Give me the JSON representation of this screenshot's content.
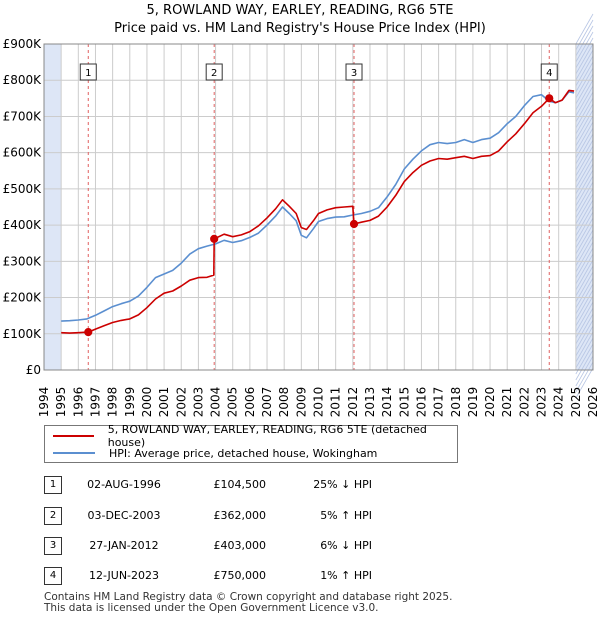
{
  "header": {
    "title_line1": "5, ROWLAND WAY, EARLEY, READING, RG6 5TE",
    "title_line2": "Price paid vs. HM Land Registry's House Price Index (HPI)"
  },
  "colors": {
    "price_line": "#cc0000",
    "hpi_line": "#5b8fd0",
    "shade": "#dde6f6",
    "marker_line": "#e06060",
    "grid": "#cccccc"
  },
  "chart_data": {
    "type": "line",
    "title": "5, ROWLAND WAY, EARLEY, READING, RG6 5TE — Price paid vs. HM Land Registry's House Price Index (HPI)",
    "xlabel": "",
    "ylabel": "",
    "xlim": [
      1994,
      2026
    ],
    "ylim": [
      0,
      900000
    ],
    "x_ticks": [
      1994,
      1995,
      1996,
      1997,
      1998,
      1999,
      2000,
      2001,
      2002,
      2003,
      2004,
      2005,
      2006,
      2007,
      2008,
      2009,
      2010,
      2011,
      2012,
      2013,
      2014,
      2015,
      2016,
      2017,
      2018,
      2019,
      2020,
      2021,
      2022,
      2023,
      2024,
      2025,
      2026
    ],
    "y_ticks": [
      {
        "value": 0,
        "label": "£0"
      },
      {
        "value": 100000,
        "label": "£100K"
      },
      {
        "value": 200000,
        "label": "£200K"
      },
      {
        "value": 300000,
        "label": "£300K"
      },
      {
        "value": 400000,
        "label": "£400K"
      },
      {
        "value": 500000,
        "label": "£500K"
      },
      {
        "value": 600000,
        "label": "£600K"
      },
      {
        "value": 700000,
        "label": "£700K"
      },
      {
        "value": 800000,
        "label": "£800K"
      },
      {
        "value": 900000,
        "label": "£900K"
      }
    ],
    "shaded_ranges": [
      [
        1994,
        1995
      ],
      [
        2025,
        2026
      ]
    ],
    "series": [
      {
        "name": "5, ROWLAND WAY, EARLEY, READING, RG6 5TE (detached house)",
        "color": "#cc0000",
        "points": [
          [
            1995.0,
            103000
          ],
          [
            1995.5,
            102000
          ],
          [
            1996.0,
            103000
          ],
          [
            1996.58,
            104500
          ],
          [
            1997.0,
            113000
          ],
          [
            1997.5,
            122000
          ],
          [
            1998.0,
            131000
          ],
          [
            1998.5,
            137000
          ],
          [
            1999.0,
            141000
          ],
          [
            1999.5,
            152000
          ],
          [
            2000.0,
            172000
          ],
          [
            2000.5,
            196000
          ],
          [
            2001.0,
            212000
          ],
          [
            2001.5,
            218000
          ],
          [
            2002.0,
            232000
          ],
          [
            2002.5,
            248000
          ],
          [
            2003.0,
            255000
          ],
          [
            2003.5,
            256000
          ],
          [
            2003.9,
            262000
          ],
          [
            2003.92,
            362000
          ],
          [
            2004.5,
            375000
          ],
          [
            2005.0,
            368000
          ],
          [
            2005.5,
            373000
          ],
          [
            2006.0,
            382000
          ],
          [
            2006.5,
            398000
          ],
          [
            2007.0,
            420000
          ],
          [
            2007.5,
            445000
          ],
          [
            2007.9,
            470000
          ],
          [
            2008.3,
            452000
          ],
          [
            2008.7,
            432000
          ],
          [
            2009.0,
            393000
          ],
          [
            2009.3,
            388000
          ],
          [
            2009.7,
            412000
          ],
          [
            2010.0,
            432000
          ],
          [
            2010.5,
            442000
          ],
          [
            2011.0,
            448000
          ],
          [
            2011.5,
            450000
          ],
          [
            2012.0,
            452000
          ],
          [
            2012.07,
            403000
          ],
          [
            2012.5,
            408000
          ],
          [
            2013.0,
            413000
          ],
          [
            2013.5,
            425000
          ],
          [
            2014.0,
            450000
          ],
          [
            2014.5,
            482000
          ],
          [
            2015.0,
            520000
          ],
          [
            2015.5,
            545000
          ],
          [
            2016.0,
            565000
          ],
          [
            2016.5,
            577000
          ],
          [
            2017.0,
            584000
          ],
          [
            2017.5,
            582000
          ],
          [
            2018.0,
            586000
          ],
          [
            2018.5,
            590000
          ],
          [
            2019.0,
            584000
          ],
          [
            2019.5,
            590000
          ],
          [
            2020.0,
            592000
          ],
          [
            2020.5,
            605000
          ],
          [
            2021.0,
            630000
          ],
          [
            2021.5,
            652000
          ],
          [
            2022.0,
            680000
          ],
          [
            2022.5,
            710000
          ],
          [
            2023.0,
            728000
          ],
          [
            2023.45,
            750000
          ],
          [
            2023.8,
            738000
          ],
          [
            2024.2,
            745000
          ],
          [
            2024.6,
            772000
          ],
          [
            2024.9,
            770000
          ]
        ]
      },
      {
        "name": "HPI: Average price, detached house, Wokingham",
        "color": "#5b8fd0",
        "points": [
          [
            1995.0,
            135000
          ],
          [
            1995.5,
            136000
          ],
          [
            1996.0,
            138000
          ],
          [
            1996.5,
            141000
          ],
          [
            1997.0,
            151000
          ],
          [
            1997.5,
            163000
          ],
          [
            1998.0,
            175000
          ],
          [
            1998.5,
            183000
          ],
          [
            1999.0,
            190000
          ],
          [
            1999.5,
            204000
          ],
          [
            2000.0,
            228000
          ],
          [
            2000.5,
            255000
          ],
          [
            2001.0,
            265000
          ],
          [
            2001.5,
            275000
          ],
          [
            2002.0,
            295000
          ],
          [
            2002.5,
            320000
          ],
          [
            2003.0,
            335000
          ],
          [
            2003.5,
            342000
          ],
          [
            2004.0,
            348000
          ],
          [
            2004.5,
            358000
          ],
          [
            2005.0,
            352000
          ],
          [
            2005.5,
            357000
          ],
          [
            2006.0,
            366000
          ],
          [
            2006.5,
            378000
          ],
          [
            2007.0,
            400000
          ],
          [
            2007.5,
            425000
          ],
          [
            2007.9,
            450000
          ],
          [
            2008.3,
            432000
          ],
          [
            2008.7,
            412000
          ],
          [
            2009.0,
            372000
          ],
          [
            2009.3,
            365000
          ],
          [
            2009.7,
            390000
          ],
          [
            2010.0,
            410000
          ],
          [
            2010.5,
            418000
          ],
          [
            2011.0,
            422000
          ],
          [
            2011.5,
            423000
          ],
          [
            2012.0,
            428000
          ],
          [
            2012.5,
            432000
          ],
          [
            2013.0,
            438000
          ],
          [
            2013.5,
            448000
          ],
          [
            2014.0,
            478000
          ],
          [
            2014.5,
            512000
          ],
          [
            2015.0,
            555000
          ],
          [
            2015.5,
            582000
          ],
          [
            2016.0,
            605000
          ],
          [
            2016.5,
            622000
          ],
          [
            2017.0,
            628000
          ],
          [
            2017.5,
            625000
          ],
          [
            2018.0,
            628000
          ],
          [
            2018.5,
            636000
          ],
          [
            2019.0,
            628000
          ],
          [
            2019.5,
            636000
          ],
          [
            2020.0,
            640000
          ],
          [
            2020.5,
            655000
          ],
          [
            2021.0,
            680000
          ],
          [
            2021.5,
            700000
          ],
          [
            2022.0,
            730000
          ],
          [
            2022.5,
            755000
          ],
          [
            2023.0,
            760000
          ],
          [
            2023.45,
            742000
          ],
          [
            2023.8,
            738000
          ],
          [
            2024.2,
            745000
          ],
          [
            2024.6,
            768000
          ],
          [
            2024.9,
            765000
          ]
        ]
      }
    ],
    "sales": [
      {
        "id": "1",
        "x": 1996.58,
        "value": 104500
      },
      {
        "id": "2",
        "x": 2003.92,
        "value": 362000
      },
      {
        "id": "3",
        "x": 2012.07,
        "value": 403000
      },
      {
        "id": "4",
        "x": 2023.45,
        "value": 750000
      }
    ],
    "legend_position": "below-plot"
  },
  "legend": {
    "items": [
      {
        "label": "5, ROWLAND WAY, EARLEY, READING, RG6 5TE (detached house)",
        "color": "#cc0000"
      },
      {
        "label": "HPI: Average price, detached house, Wokingham",
        "color": "#5b8fd0"
      }
    ]
  },
  "table": {
    "rows": [
      {
        "num": "1",
        "date": "02-AUG-1996",
        "price": "£104,500",
        "hpi": "25% ↓ HPI"
      },
      {
        "num": "2",
        "date": "03-DEC-2003",
        "price": "£362,000",
        "hpi": "5% ↑ HPI"
      },
      {
        "num": "3",
        "date": "27-JAN-2012",
        "price": "£403,000",
        "hpi": "6% ↓ HPI"
      },
      {
        "num": "4",
        "date": "12-JUN-2023",
        "price": "£750,000",
        "hpi": "1% ↑ HPI"
      }
    ]
  },
  "footer": {
    "line1": "Contains HM Land Registry data © Crown copyright and database right 2025.",
    "line2": "This data is licensed under the Open Government Licence v3.0."
  }
}
